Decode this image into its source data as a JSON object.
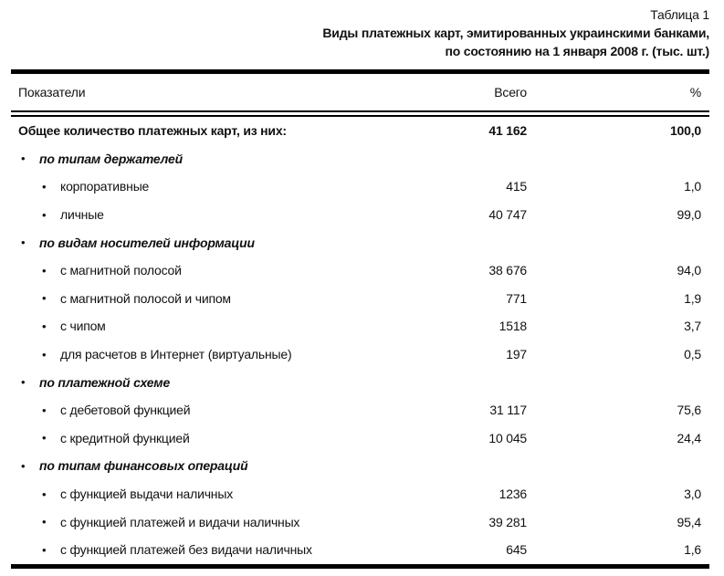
{
  "caption": {
    "table_label": "Таблица 1",
    "title_line1": "Виды платежных карт, эмитированных украинскими банками,",
    "title_line2": "по состоянию на 1 января 2008 г. (тыс. шт.)"
  },
  "columns": {
    "indicator": "Показатели",
    "total": "Всего",
    "percent": "%"
  },
  "bullet_glyph": "•",
  "colors": {
    "text": "#111111",
    "rule": "#000000",
    "background": "#ffffff"
  },
  "rows": [
    {
      "type": "total",
      "label": "Общее количество платежных карт, из них:",
      "total": "41 162",
      "percent": "100,0"
    },
    {
      "type": "section",
      "label": "по типам держателей",
      "total": "",
      "percent": ""
    },
    {
      "type": "item",
      "label": "корпоративные",
      "total": "415",
      "percent": "1,0"
    },
    {
      "type": "item",
      "label": "личные",
      "total": "40 747",
      "percent": "99,0"
    },
    {
      "type": "section",
      "label": "по видам носителей информации",
      "total": "",
      "percent": ""
    },
    {
      "type": "item",
      "label": "с магнитной полосой",
      "total": "38 676",
      "percent": "94,0"
    },
    {
      "type": "item",
      "label": "с магнитной полосой и чипом",
      "total": "771",
      "percent": "1,9"
    },
    {
      "type": "item",
      "label": "с чипом",
      "total": "1518",
      "percent": "3,7"
    },
    {
      "type": "item",
      "label": "для расчетов в Интернет (виртуальные)",
      "total": "197",
      "percent": "0,5"
    },
    {
      "type": "section",
      "label": "по платежной схеме",
      "total": "",
      "percent": ""
    },
    {
      "type": "item",
      "label": "с дебетовой функцией",
      "total": "31 117",
      "percent": "75,6"
    },
    {
      "type": "item",
      "label": "с кредитной функцией",
      "total": "10 045",
      "percent": "24,4"
    },
    {
      "type": "section",
      "label": "по типам финансовых операций",
      "total": "",
      "percent": ""
    },
    {
      "type": "item",
      "label": "с функцией выдачи наличных",
      "total": "1236",
      "percent": "3,0"
    },
    {
      "type": "item",
      "label": "с функцией платежей и видачи наличных",
      "total": "39 281",
      "percent": "95,4"
    },
    {
      "type": "item",
      "label": "с функцией платежей без видачи наличных",
      "total": "645",
      "percent": "1,6"
    }
  ]
}
